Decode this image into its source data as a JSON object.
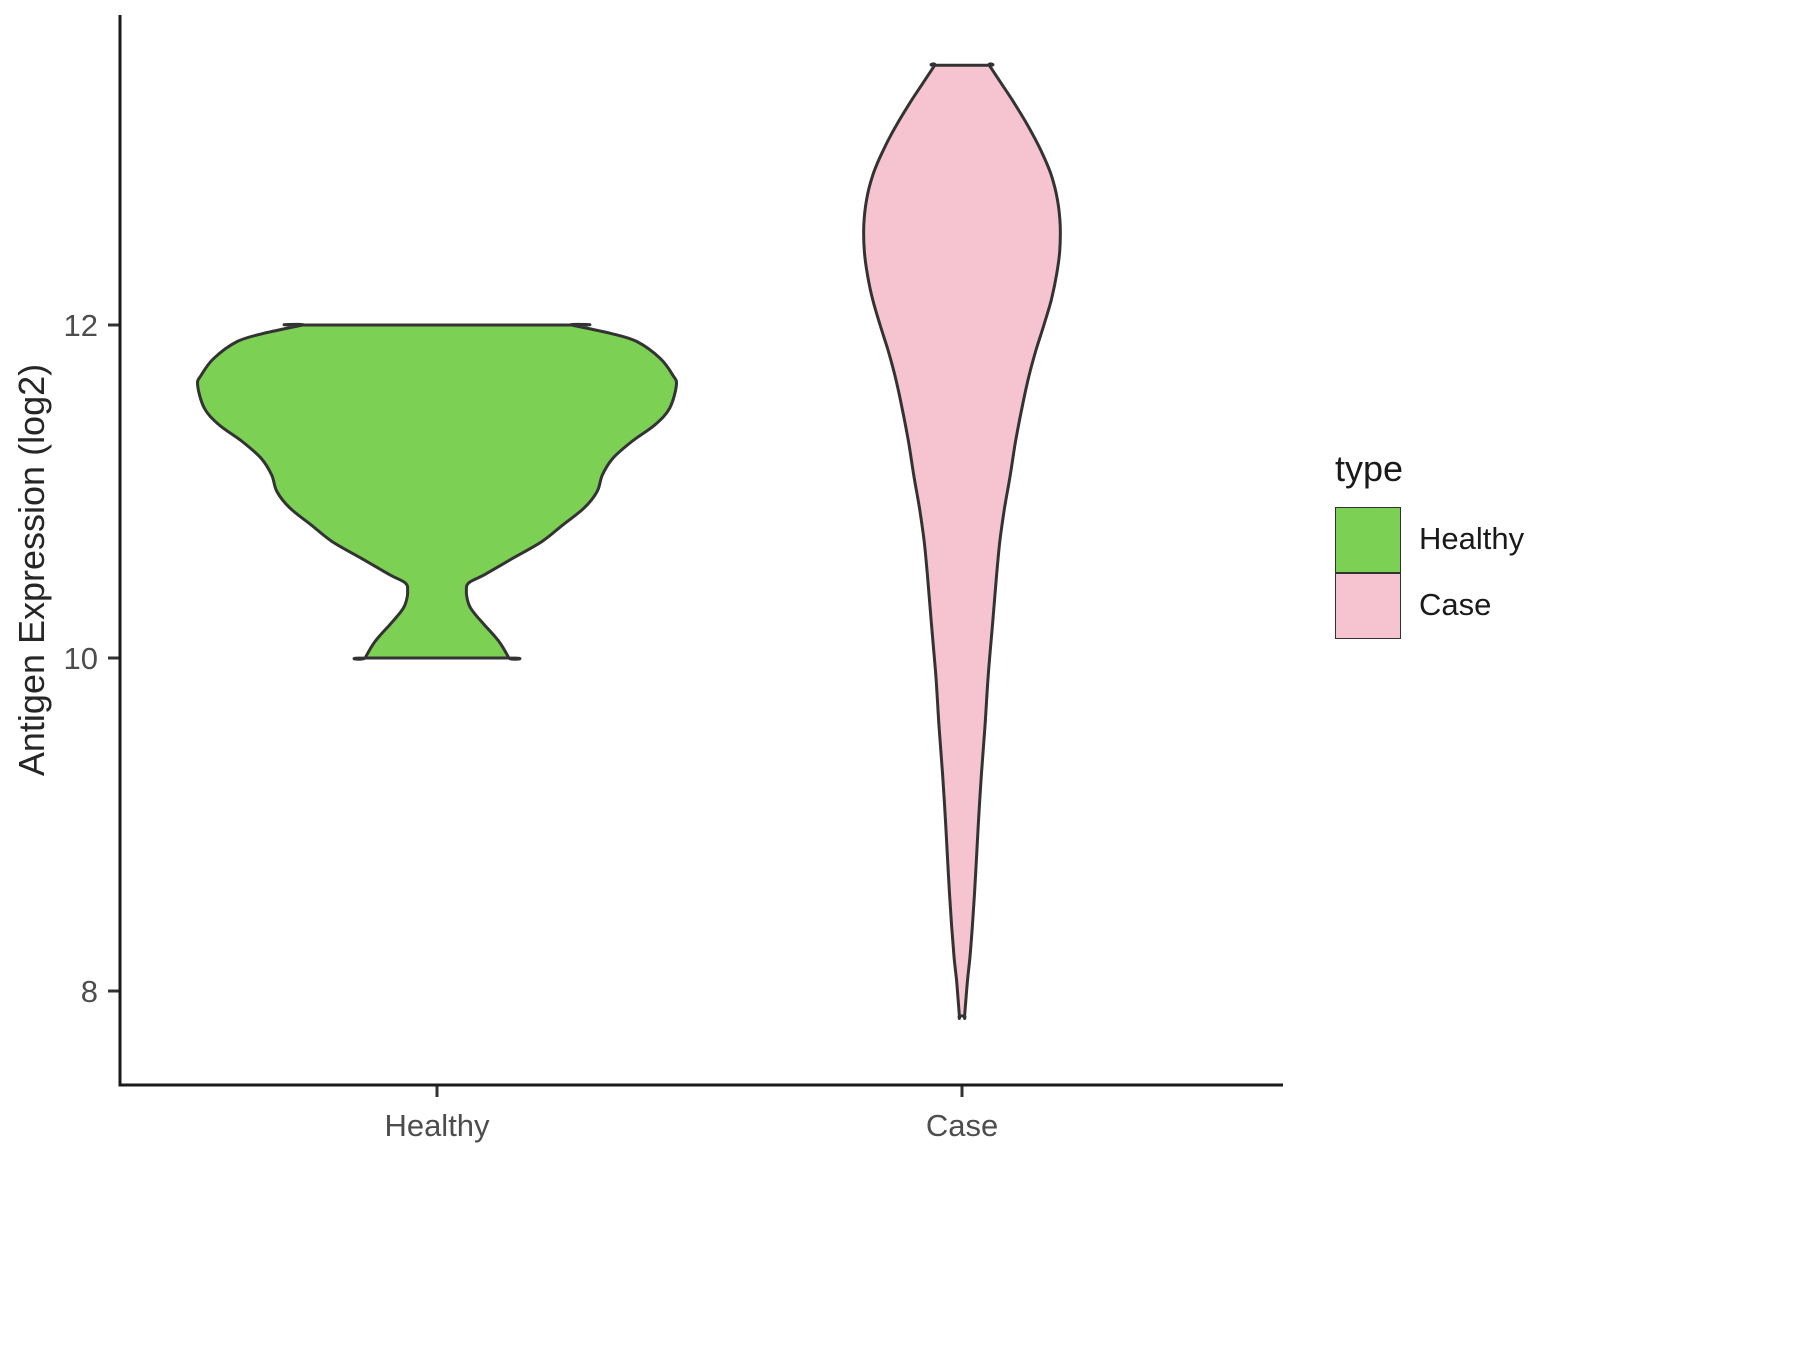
{
  "chart_data": {
    "type": "violin",
    "title": "",
    "xlabel": "",
    "ylabel": "Antigen Expression (log2)",
    "categories": [
      "Healthy",
      "Case"
    ],
    "yticks": [
      "12",
      "10",
      "8"
    ],
    "ytick_values": [
      12,
      10,
      8
    ],
    "ylim": [
      7.3,
      13.9
    ],
    "grid": "off",
    "legend_position": "right",
    "stroke_color": "#333333",
    "axis_color": "#1a1a1a",
    "legend": {
      "title": "type",
      "entries": [
        {
          "label": "Healthy",
          "color": "#7CD053"
        },
        {
          "label": "Case",
          "color": "#F6C4D0"
        }
      ]
    },
    "series": [
      {
        "name": "Healthy",
        "color": "#7CD053",
        "value_range": [
          10.0,
          12.0
        ],
        "profile": [
          [
            12.0,
            0.256
          ],
          [
            11.95,
            0.33
          ],
          [
            11.9,
            0.381
          ],
          [
            11.8,
            0.425
          ],
          [
            11.7,
            0.449
          ],
          [
            11.64,
            0.456
          ],
          [
            11.5,
            0.443
          ],
          [
            11.4,
            0.415
          ],
          [
            11.3,
            0.371
          ],
          [
            11.2,
            0.335
          ],
          [
            11.1,
            0.315
          ],
          [
            11.0,
            0.305
          ],
          [
            10.9,
            0.28
          ],
          [
            10.8,
            0.24
          ],
          [
            10.7,
            0.2
          ],
          [
            10.6,
            0.145
          ],
          [
            10.5,
            0.09
          ],
          [
            10.45,
            0.06
          ],
          [
            10.4,
            0.056
          ],
          [
            10.35,
            0.058
          ],
          [
            10.3,
            0.064
          ],
          [
            10.25,
            0.076
          ],
          [
            10.2,
            0.09
          ],
          [
            10.1,
            0.118
          ],
          [
            10.0,
            0.137
          ]
        ]
      },
      {
        "name": "Case",
        "color": "#F6C4D0",
        "value_range": [
          7.85,
          13.56
        ],
        "profile": [
          [
            13.56,
            0.052
          ],
          [
            13.45,
            0.075
          ],
          [
            13.35,
            0.096
          ],
          [
            13.2,
            0.125
          ],
          [
            13.05,
            0.15
          ],
          [
            12.9,
            0.17
          ],
          [
            12.75,
            0.182
          ],
          [
            12.6,
            0.187
          ],
          [
            12.44,
            0.186
          ],
          [
            12.3,
            0.18
          ],
          [
            12.15,
            0.17
          ],
          [
            12.0,
            0.156
          ],
          [
            11.85,
            0.141
          ],
          [
            11.7,
            0.128
          ],
          [
            11.5,
            0.114
          ],
          [
            11.3,
            0.102
          ],
          [
            11.1,
            0.092
          ],
          [
            10.9,
            0.081
          ],
          [
            10.7,
            0.072
          ],
          [
            10.5,
            0.066
          ],
          [
            10.2,
            0.058
          ],
          [
            9.9,
            0.05
          ],
          [
            9.6,
            0.044
          ],
          [
            9.3,
            0.037
          ],
          [
            9.0,
            0.031
          ],
          [
            8.7,
            0.026
          ],
          [
            8.4,
            0.02
          ],
          [
            8.2,
            0.015
          ],
          [
            8.05,
            0.01
          ],
          [
            7.85,
            0.005
          ]
        ]
      }
    ]
  }
}
